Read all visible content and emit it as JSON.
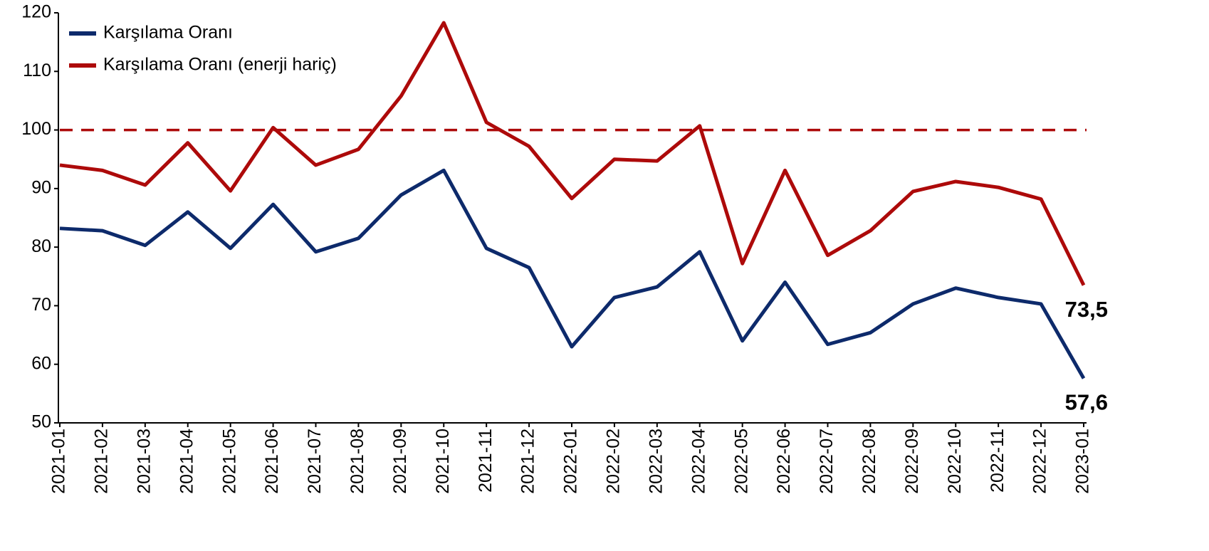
{
  "chart_data": {
    "type": "line",
    "categories": [
      "2021-01",
      "2021-02",
      "2021-03",
      "2021-04",
      "2021-05",
      "2021-06",
      "2021-07",
      "2021-08",
      "2021-09",
      "2021-10",
      "2021-11",
      "2021-12",
      "2022-01",
      "2022-02",
      "2022-03",
      "2022-04",
      "2022-05",
      "2022-06",
      "2022-07",
      "2022-08",
      "2022-09",
      "2022-10",
      "2022-11",
      "2022-12",
      "2023-01"
    ],
    "series": [
      {
        "name": "Karşılama Oranı",
        "color": "#0d2a6b",
        "values": [
          83.2,
          82.8,
          80.3,
          86.0,
          79.8,
          87.3,
          79.2,
          81.5,
          88.9,
          93.1,
          79.8,
          76.5,
          63.0,
          71.4,
          73.2,
          79.2,
          64.0,
          74.0,
          63.4,
          65.4,
          70.3,
          73.0,
          71.4,
          70.3,
          57.6
        ],
        "value_labels": [
          null,
          null,
          null,
          null,
          null,
          null,
          null,
          null,
          null,
          null,
          null,
          null,
          null,
          null,
          null,
          null,
          null,
          null,
          null,
          null,
          null,
          null,
          null,
          null,
          "57,6"
        ]
      },
      {
        "name": "Karşılama Oranı (enerji hariç)",
        "color": "#ad0a0a",
        "values": [
          94.0,
          93.1,
          90.6,
          97.8,
          89.6,
          100.4,
          94.0,
          96.7,
          105.8,
          118.3,
          101.3,
          97.2,
          88.3,
          95.0,
          94.7,
          100.7,
          77.2,
          93.1,
          78.6,
          82.8,
          89.5,
          91.2,
          90.2,
          88.2,
          73.5
        ],
        "value_labels": [
          null,
          null,
          null,
          null,
          null,
          null,
          null,
          null,
          null,
          null,
          null,
          null,
          null,
          null,
          null,
          null,
          null,
          null,
          null,
          null,
          null,
          null,
          null,
          null,
          "73,5"
        ]
      }
    ],
    "reference_line": {
      "value": 100,
      "color": "#ad0a0a"
    },
    "ylim": [
      50,
      120
    ],
    "yticks": [
      50,
      60,
      70,
      80,
      90,
      100,
      110,
      120
    ],
    "legend": "top-left",
    "grid": false
  }
}
